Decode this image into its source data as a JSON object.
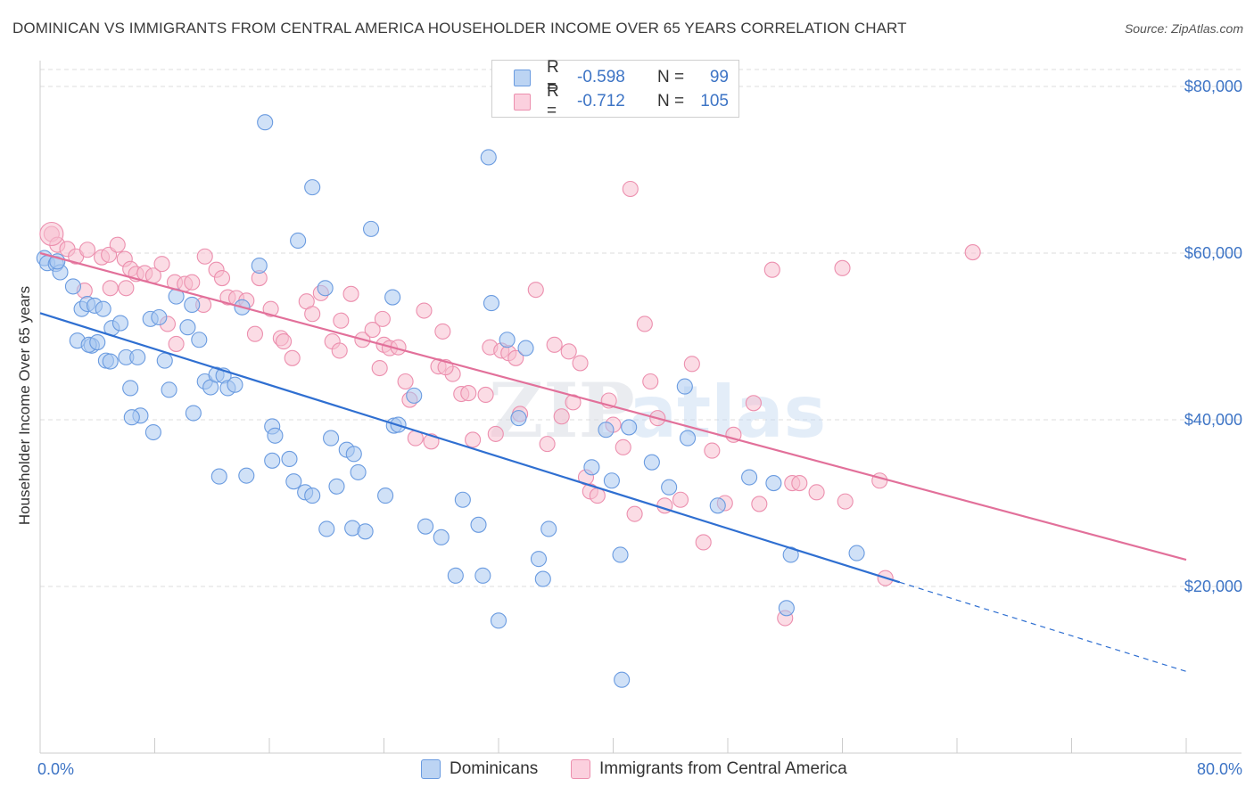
{
  "title": "DOMINICAN VS IMMIGRANTS FROM CENTRAL AMERICA HOUSEHOLDER INCOME OVER 65 YEARS CORRELATION CHART",
  "source": "Source: ZipAtlas.com",
  "legend": {
    "r_label": "R =",
    "n_label": "N =",
    "rows": [
      {
        "r": "-0.598",
        "n": "99"
      },
      {
        "r": "-0.712",
        "n": "105"
      }
    ]
  },
  "bottom_legend": [
    "Dominicans",
    "Immigrants from Central America"
  ],
  "colors": {
    "blue_fill": "#a9c8f0",
    "blue_stroke": "#6a9be0",
    "blue_line": "#2f6fd1",
    "pink_fill": "#f7bfd0",
    "pink_stroke": "#ec8fae",
    "pink_line": "#e2709a",
    "axis_text": "#3d74c5",
    "grid": "#dddddd"
  },
  "watermark": {
    "zip": "ZIP",
    "atlas": "atlas"
  },
  "chart_data": {
    "type": "scatter",
    "title": "DOMINICAN VS IMMIGRANTS FROM CENTRAL AMERICA HOUSEHOLDER INCOME OVER 65 YEARS CORRELATION CHART",
    "xlabel": "",
    "ylabel": "Householder Income Over 65 years",
    "xlim": [
      0,
      80
    ],
    "ylim": [
      0,
      80000
    ],
    "x_tick_labels": [
      "0.0%",
      "80.0%"
    ],
    "y_ticks": [
      20000,
      40000,
      60000,
      80000
    ],
    "y_tick_labels": [
      "$20,000",
      "$40,000",
      "$60,000",
      "$80,000"
    ],
    "series": [
      {
        "name": "Dominicans",
        "R": -0.598,
        "N": 99,
        "trend": {
          "x": [
            0,
            60
          ],
          "y": [
            52800,
            20500
          ],
          "dashed_to": [
            80,
            9800
          ]
        },
        "points": [
          [
            0.3,
            59400
          ],
          [
            0.5,
            58800
          ],
          [
            1.1,
            58700
          ],
          [
            1.4,
            57700
          ],
          [
            1.2,
            59000
          ],
          [
            2.3,
            56000
          ],
          [
            2.9,
            53300
          ],
          [
            3.3,
            53900
          ],
          [
            3.8,
            53700
          ],
          [
            4.4,
            53300
          ],
          [
            2.6,
            49500
          ],
          [
            3.6,
            48900
          ],
          [
            4.6,
            47100
          ],
          [
            5.0,
            51000
          ],
          [
            6.0,
            47500
          ],
          [
            5.6,
            51600
          ],
          [
            6.8,
            47500
          ],
          [
            7.7,
            52100
          ],
          [
            8.3,
            52300
          ],
          [
            8.7,
            47100
          ],
          [
            9.5,
            54800
          ],
          [
            10.3,
            51100
          ],
          [
            10.6,
            53800
          ],
          [
            11.1,
            49600
          ],
          [
            6.3,
            43800
          ],
          [
            7.0,
            40500
          ],
          [
            7.9,
            38500
          ],
          [
            9.0,
            43600
          ],
          [
            10.7,
            40800
          ],
          [
            11.5,
            44600
          ],
          [
            11.9,
            43900
          ],
          [
            12.3,
            45400
          ],
          [
            12.8,
            45300
          ],
          [
            13.1,
            43800
          ],
          [
            13.6,
            44200
          ],
          [
            14.1,
            53500
          ],
          [
            15.3,
            58500
          ],
          [
            15.7,
            75700
          ],
          [
            18.0,
            61500
          ],
          [
            19.0,
            67900
          ],
          [
            16.2,
            39200
          ],
          [
            16.4,
            38100
          ],
          [
            17.7,
            32600
          ],
          [
            18.5,
            31300
          ],
          [
            19.0,
            30900
          ],
          [
            19.9,
            55800
          ],
          [
            20.0,
            26900
          ],
          [
            20.3,
            37800
          ],
          [
            20.7,
            32000
          ],
          [
            21.8,
            27000
          ],
          [
            21.4,
            36400
          ],
          [
            21.9,
            35900
          ],
          [
            22.2,
            33700
          ],
          [
            22.7,
            26600
          ],
          [
            23.1,
            62900
          ],
          [
            24.1,
            30900
          ],
          [
            24.6,
            54700
          ],
          [
            24.7,
            39300
          ],
          [
            25.0,
            39400
          ],
          [
            26.1,
            42900
          ],
          [
            26.9,
            27200
          ],
          [
            28.0,
            25900
          ],
          [
            29.0,
            21300
          ],
          [
            29.5,
            30400
          ],
          [
            30.6,
            27400
          ],
          [
            30.9,
            21300
          ],
          [
            31.3,
            71500
          ],
          [
            31.5,
            54000
          ],
          [
            32.0,
            15900
          ],
          [
            32.6,
            49600
          ],
          [
            33.4,
            40200
          ],
          [
            33.9,
            48600
          ],
          [
            34.8,
            23300
          ],
          [
            35.1,
            20900
          ],
          [
            35.5,
            26900
          ],
          [
            38.5,
            34300
          ],
          [
            39.5,
            38800
          ],
          [
            39.9,
            32700
          ],
          [
            40.5,
            23800
          ],
          [
            40.6,
            8800
          ],
          [
            41.1,
            39100
          ],
          [
            42.7,
            34900
          ],
          [
            43.9,
            31900
          ],
          [
            45.0,
            44000
          ],
          [
            45.2,
            37800
          ],
          [
            47.3,
            29700
          ],
          [
            49.5,
            33100
          ],
          [
            51.2,
            32400
          ],
          [
            52.1,
            17400
          ],
          [
            52.4,
            23800
          ],
          [
            57.0,
            24000
          ],
          [
            12.5,
            33200
          ],
          [
            14.4,
            33300
          ],
          [
            16.2,
            35100
          ],
          [
            17.4,
            35300
          ],
          [
            3.4,
            49000
          ],
          [
            4.0,
            49300
          ],
          [
            4.9,
            47000
          ],
          [
            6.4,
            40300
          ]
        ]
      },
      {
        "name": "Immigrants from Central America",
        "R": -0.712,
        "N": 105,
        "trend": {
          "x": [
            0,
            80
          ],
          "y": [
            60000,
            23200
          ]
        },
        "points": [
          [
            0.8,
            62300
          ],
          [
            1.2,
            61000
          ],
          [
            1.9,
            60500
          ],
          [
            2.5,
            59600
          ],
          [
            3.3,
            60400
          ],
          [
            3.1,
            55500
          ],
          [
            4.3,
            59500
          ],
          [
            4.8,
            59800
          ],
          [
            5.4,
            61000
          ],
          [
            5.9,
            59300
          ],
          [
            4.9,
            55800
          ],
          [
            6.3,
            58100
          ],
          [
            6.7,
            57500
          ],
          [
            7.3,
            57600
          ],
          [
            7.9,
            57300
          ],
          [
            8.5,
            58700
          ],
          [
            8.9,
            51500
          ],
          [
            9.4,
            56500
          ],
          [
            10.1,
            56300
          ],
          [
            10.6,
            56500
          ],
          [
            11.4,
            53800
          ],
          [
            11.5,
            59600
          ],
          [
            12.3,
            58000
          ],
          [
            12.7,
            57000
          ],
          [
            13.1,
            54700
          ],
          [
            13.7,
            54600
          ],
          [
            14.4,
            54300
          ],
          [
            15.0,
            50300
          ],
          [
            15.3,
            57000
          ],
          [
            16.1,
            53300
          ],
          [
            16.8,
            49800
          ],
          [
            17.0,
            49400
          ],
          [
            17.6,
            47400
          ],
          [
            18.6,
            54200
          ],
          [
            19.0,
            52700
          ],
          [
            19.6,
            55200
          ],
          [
            20.4,
            49400
          ],
          [
            20.9,
            48300
          ],
          [
            21.0,
            51900
          ],
          [
            21.7,
            55100
          ],
          [
            22.5,
            49600
          ],
          [
            23.2,
            50800
          ],
          [
            23.7,
            46200
          ],
          [
            24.0,
            49000
          ],
          [
            24.4,
            48600
          ],
          [
            25.0,
            48700
          ],
          [
            25.5,
            44600
          ],
          [
            25.8,
            42400
          ],
          [
            26.2,
            37800
          ],
          [
            26.8,
            53100
          ],
          [
            27.3,
            37400
          ],
          [
            27.8,
            46400
          ],
          [
            28.1,
            50600
          ],
          [
            28.8,
            45500
          ],
          [
            29.4,
            43100
          ],
          [
            29.9,
            43200
          ],
          [
            30.2,
            37600
          ],
          [
            31.1,
            43000
          ],
          [
            31.4,
            48700
          ],
          [
            31.8,
            38300
          ],
          [
            32.2,
            48300
          ],
          [
            32.7,
            48000
          ],
          [
            33.2,
            47400
          ],
          [
            33.5,
            40700
          ],
          [
            34.6,
            55600
          ],
          [
            35.4,
            37100
          ],
          [
            35.9,
            49000
          ],
          [
            36.4,
            40400
          ],
          [
            36.9,
            48200
          ],
          [
            37.2,
            42100
          ],
          [
            37.7,
            46800
          ],
          [
            38.1,
            33100
          ],
          [
            38.4,
            31400
          ],
          [
            38.9,
            30900
          ],
          [
            39.7,
            42300
          ],
          [
            40.0,
            39400
          ],
          [
            40.7,
            36700
          ],
          [
            41.2,
            67700
          ],
          [
            42.2,
            51500
          ],
          [
            42.6,
            44600
          ],
          [
            43.1,
            40200
          ],
          [
            43.6,
            29700
          ],
          [
            44.7,
            30400
          ],
          [
            45.5,
            46700
          ],
          [
            46.3,
            25300
          ],
          [
            46.9,
            36300
          ],
          [
            47.8,
            30000
          ],
          [
            48.4,
            38200
          ],
          [
            49.8,
            42000
          ],
          [
            50.2,
            29900
          ],
          [
            51.1,
            58000
          ],
          [
            52.0,
            16200
          ],
          [
            52.5,
            32400
          ],
          [
            53.0,
            32400
          ],
          [
            54.2,
            31300
          ],
          [
            56.0,
            58200
          ],
          [
            56.2,
            30200
          ],
          [
            58.6,
            32700
          ],
          [
            59.0,
            21000
          ],
          [
            65.1,
            60100
          ],
          [
            41.5,
            28700
          ],
          [
            23.9,
            52100
          ],
          [
            28.3,
            46300
          ],
          [
            9.5,
            49100
          ],
          [
            6.0,
            55800
          ]
        ]
      }
    ]
  }
}
